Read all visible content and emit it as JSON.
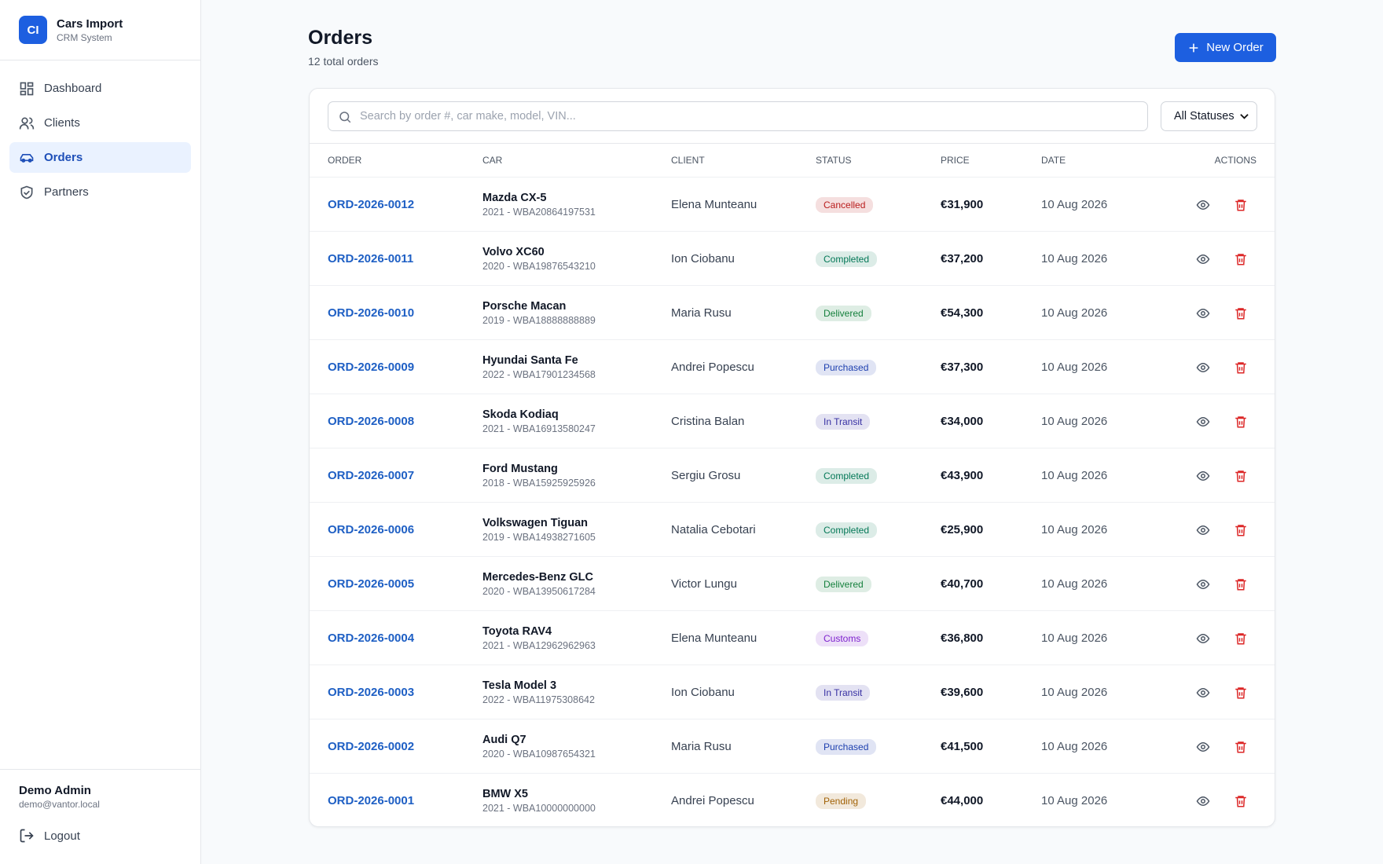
{
  "sidebar": {
    "brand": {
      "initials": "CI",
      "name": "Cars Import",
      "subtitle": "CRM System"
    },
    "nav": [
      "Dashboard",
      "Clients",
      "Orders",
      "Partners"
    ],
    "user": {
      "name": "Demo Admin",
      "email": "demo@vantor.local"
    },
    "logout": "Logout"
  },
  "header": {
    "title": "Orders",
    "subtitle": "12 total orders",
    "button": "New Order"
  },
  "filters": {
    "search_placeholder": "Search by order #, car make, model, VIN...",
    "status_select": "All Statuses"
  },
  "table": {
    "columns": [
      "ORDER",
      "CAR",
      "CLIENT",
      "STATUS",
      "PRICE",
      "DATE",
      "ACTIONS"
    ],
    "rows": [
      {
        "order": "ORD-2026-0012",
        "car": "Mazda CX-5",
        "details": "2021 - WBA20864197531",
        "client": "Elena Munteanu",
        "status": "Cancelled",
        "status_color": "#b91c1c",
        "price": "€31,900",
        "date": "10 Aug 2026"
      },
      {
        "order": "ORD-2026-0011",
        "car": "Volvo XC60",
        "details": "2020 - WBA19876543210",
        "client": "Ion Ciobanu",
        "status": "Completed",
        "status_color": "#047857",
        "price": "€37,200",
        "date": "10 Aug 2026"
      },
      {
        "order": "ORD-2026-0010",
        "car": "Porsche Macan",
        "details": "2019 - WBA18888888889",
        "client": "Maria Rusu",
        "status": "Delivered",
        "status_color": "#15803d",
        "price": "€54,300",
        "date": "10 Aug 2026"
      },
      {
        "order": "ORD-2026-0009",
        "car": "Hyundai Santa Fe",
        "details": "2022 - WBA17901234568",
        "client": "Andrei Popescu",
        "status": "Purchased",
        "status_color": "#1e40af",
        "price": "€37,300",
        "date": "10 Aug 2026"
      },
      {
        "order": "ORD-2026-0008",
        "car": "Skoda Kodiaq",
        "details": "2021 - WBA16913580247",
        "client": "Cristina Balan",
        "status": "In Transit",
        "status_color": "#3730a3",
        "price": "€34,000",
        "date": "10 Aug 2026"
      },
      {
        "order": "ORD-2026-0007",
        "car": "Ford Mustang",
        "details": "2018 - WBA15925925926",
        "client": "Sergiu Grosu",
        "status": "Completed",
        "status_color": "#047857",
        "price": "€43,900",
        "date": "10 Aug 2026"
      },
      {
        "order": "ORD-2026-0006",
        "car": "Volkswagen Tiguan",
        "details": "2019 - WBA14938271605",
        "client": "Natalia Cebotari",
        "status": "Completed",
        "status_color": "#047857",
        "price": "€25,900",
        "date": "10 Aug 2026"
      },
      {
        "order": "ORD-2026-0005",
        "car": "Mercedes-Benz GLC",
        "details": "2020 - WBA13950617284",
        "client": "Victor Lungu",
        "status": "Delivered",
        "status_color": "#15803d",
        "price": "€40,700",
        "date": "10 Aug 2026"
      },
      {
        "order": "ORD-2026-0004",
        "car": "Toyota RAV4",
        "details": "2021 - WBA12962962963",
        "client": "Elena Munteanu",
        "status": "Customs",
        "status_color": "#7e22ce",
        "price": "€36,800",
        "date": "10 Aug 2026"
      },
      {
        "order": "ORD-2026-0003",
        "car": "Tesla Model 3",
        "details": "2022 - WBA11975308642",
        "client": "Ion Ciobanu",
        "status": "In Transit",
        "status_color": "#3730a3",
        "price": "€39,600",
        "date": "10 Aug 2026"
      },
      {
        "order": "ORD-2026-0002",
        "car": "Audi Q7",
        "details": "2020 - WBA10987654321",
        "client": "Maria Rusu",
        "status": "Purchased",
        "status_color": "#1e40af",
        "price": "€41,500",
        "date": "10 Aug 2026"
      },
      {
        "order": "ORD-2026-0001",
        "car": "BMW X5",
        "details": "2021 - WBA10000000000",
        "client": "Andrei Popescu",
        "status": "Pending",
        "status_color": "#a16207",
        "price": "€44,000",
        "date": "10 Aug 2026"
      }
    ]
  }
}
